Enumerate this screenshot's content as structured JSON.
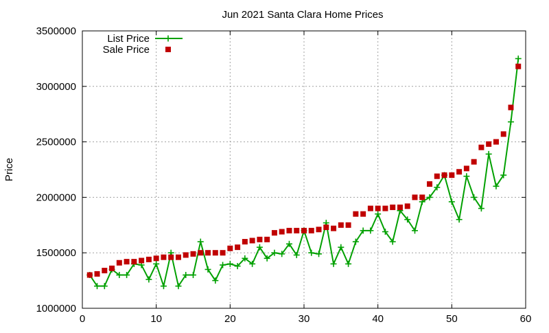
{
  "chart_data": {
    "type": "scatter",
    "title": "Jun 2021 Santa Clara Home Prices",
    "xlabel": "",
    "ylabel": "Price",
    "xlim": [
      0,
      60
    ],
    "ylim": [
      1000000,
      3500000
    ],
    "xticks": [
      0,
      10,
      20,
      30,
      40,
      50,
      60
    ],
    "yticks": [
      1000000,
      1500000,
      2000000,
      2500000,
      3000000,
      3500000
    ],
    "grid": true,
    "legend_position": "top-left",
    "series": [
      {
        "name": "List Price",
        "style": "linespoints",
        "marker": "plus",
        "color": "#00a000",
        "x": [
          1,
          2,
          3,
          4,
          5,
          6,
          7,
          8,
          9,
          10,
          11,
          12,
          13,
          14,
          15,
          16,
          17,
          18,
          19,
          20,
          21,
          22,
          23,
          24,
          25,
          26,
          27,
          28,
          29,
          30,
          31,
          32,
          33,
          34,
          35,
          36,
          37,
          38,
          39,
          40,
          41,
          42,
          43,
          44,
          45,
          46,
          47,
          48,
          49,
          50,
          51,
          52,
          53,
          54,
          55,
          56,
          57,
          58,
          59
        ],
        "y": [
          1300000,
          1200000,
          1200000,
          1350000,
          1300000,
          1300000,
          1400000,
          1390000,
          1260000,
          1400000,
          1200000,
          1500000,
          1200000,
          1300000,
          1300000,
          1600000,
          1350000,
          1250000,
          1390000,
          1400000,
          1380000,
          1450000,
          1400000,
          1550000,
          1450000,
          1500000,
          1490000,
          1580000,
          1480000,
          1700000,
          1500000,
          1490000,
          1770000,
          1400000,
          1550000,
          1400000,
          1600000,
          1700000,
          1700000,
          1850000,
          1690000,
          1600000,
          1880000,
          1800000,
          1700000,
          1960000,
          2000000,
          2090000,
          2200000,
          1960000,
          1800000,
          2190000,
          2000000,
          1900000,
          2390000,
          2100000,
          2200000,
          2680000,
          3250000
        ]
      },
      {
        "name": "Sale Price",
        "style": "points",
        "marker": "square",
        "color": "#c00000",
        "x": [
          1,
          2,
          3,
          4,
          5,
          6,
          7,
          8,
          9,
          10,
          11,
          12,
          13,
          14,
          15,
          16,
          17,
          18,
          19,
          20,
          21,
          22,
          23,
          24,
          25,
          26,
          27,
          28,
          29,
          30,
          31,
          32,
          33,
          34,
          35,
          36,
          37,
          38,
          39,
          40,
          41,
          42,
          43,
          44,
          45,
          46,
          47,
          48,
          49,
          50,
          51,
          52,
          53,
          54,
          55,
          56,
          57,
          58,
          59
        ],
        "y": [
          1300000,
          1310000,
          1340000,
          1360000,
          1410000,
          1420000,
          1420000,
          1430000,
          1440000,
          1450000,
          1460000,
          1460000,
          1460000,
          1480000,
          1490000,
          1500000,
          1500000,
          1500000,
          1500000,
          1540000,
          1550000,
          1600000,
          1610000,
          1620000,
          1620000,
          1680000,
          1690000,
          1700000,
          1700000,
          1700000,
          1700000,
          1710000,
          1730000,
          1720000,
          1750000,
          1750000,
          1850000,
          1850000,
          1900000,
          1900000,
          1900000,
          1910000,
          1910000,
          1920000,
          2000000,
          2000000,
          2120000,
          2190000,
          2200000,
          2200000,
          2230000,
          2260000,
          2320000,
          2450000,
          2480000,
          2500000,
          2570000,
          2810000,
          3180000
        ]
      }
    ]
  }
}
